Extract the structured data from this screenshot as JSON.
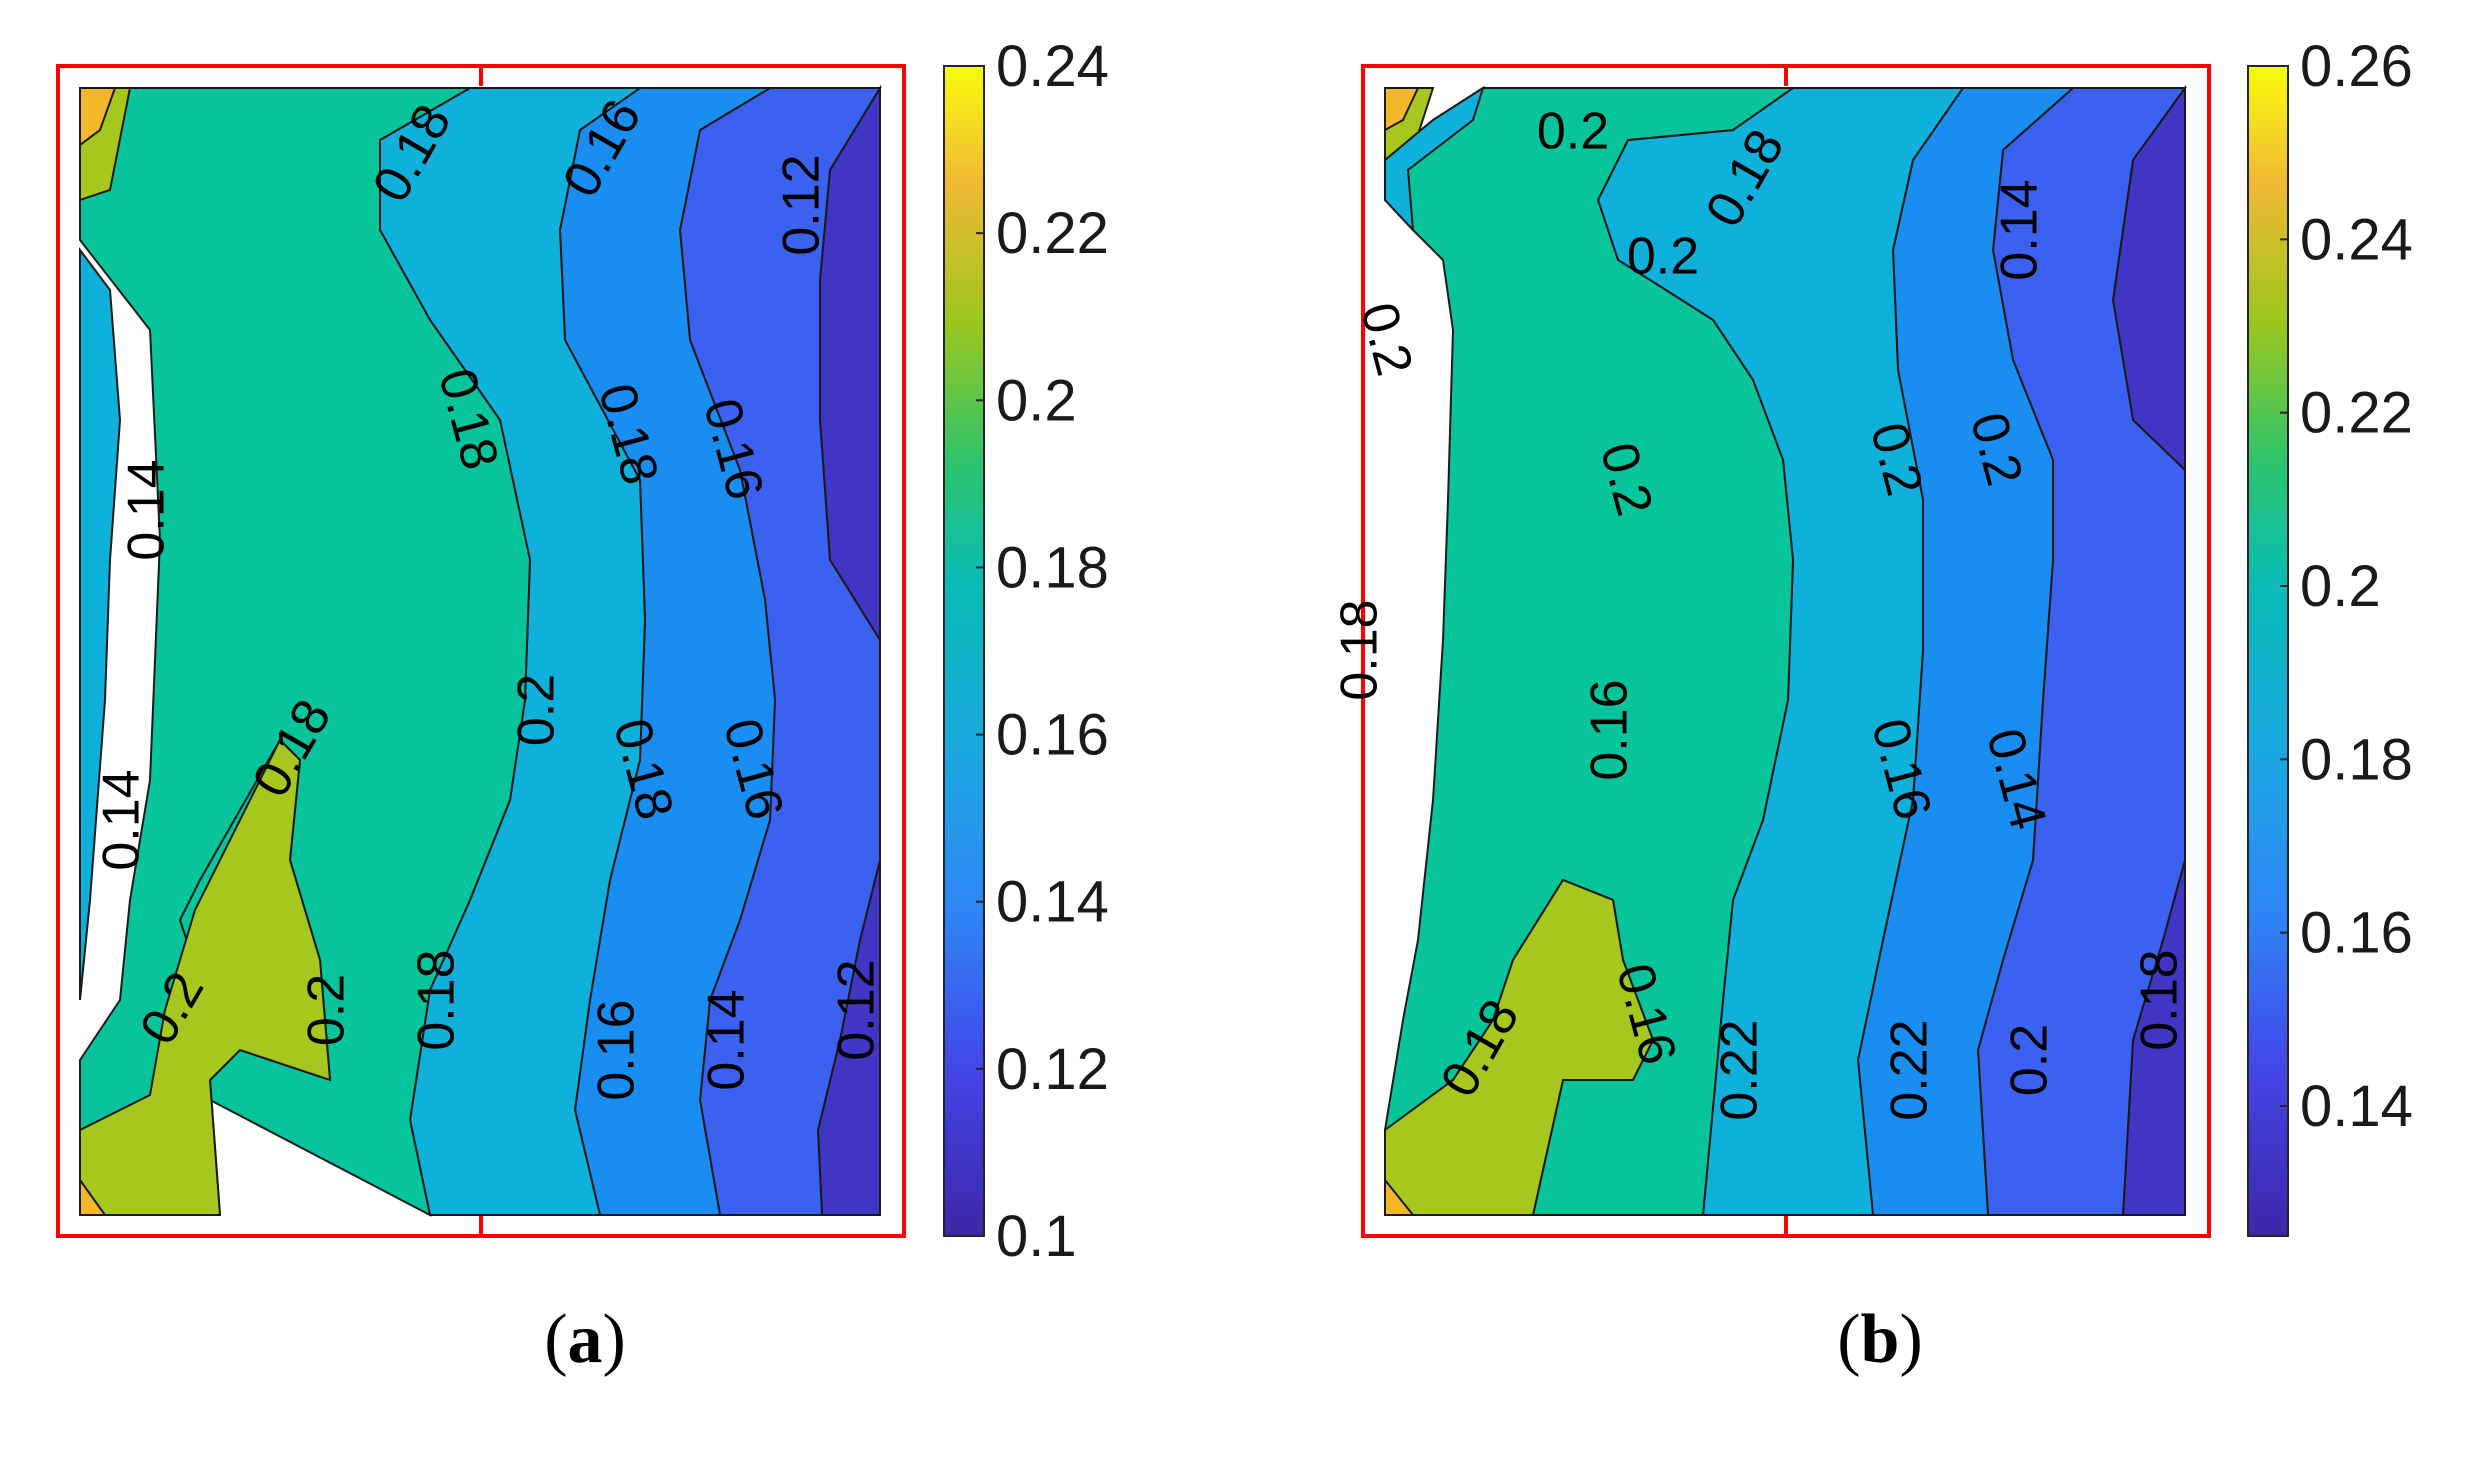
{
  "chart_data": [
    {
      "type": "heatmap",
      "subtype": "filled-contour",
      "panel_label": "a",
      "colormap": "parula",
      "clim": [
        0.1,
        0.24
      ],
      "colorbar_ticks": [
        "0.24",
        "0.22",
        "0.2",
        "0.18",
        "0.16",
        "0.14",
        "0.12",
        "0.1"
      ],
      "contour_labels": [
        "0.18",
        "0.16",
        "0.12",
        "0.18",
        "0.18",
        "0.16",
        "0.14",
        "0.2",
        "0.18",
        "0.16",
        "0.14",
        "0.18",
        "0.2",
        "0.2",
        "0.18",
        "0.16",
        "0.14",
        "0.12"
      ],
      "grid": false,
      "frame_color": "#ff0000"
    },
    {
      "type": "heatmap",
      "subtype": "filled-contour",
      "panel_label": "b",
      "colormap": "parula",
      "clim": [
        0.125,
        0.26
      ],
      "colorbar_ticks": [
        "0.26",
        "0.24",
        "0.22",
        "0.2",
        "0.18",
        "0.16",
        "0.14"
      ],
      "contour_labels": [
        "0.2",
        "0.18",
        "0.2",
        "0.14",
        "0.2",
        "0.2",
        "0.18",
        "0.16",
        "0.2",
        "0.2",
        "0.18",
        "0.16",
        "0.22",
        "0.22",
        "0.2",
        "0.18",
        "0.16",
        "0.14"
      ],
      "grid": false,
      "frame_color": "#ff0000"
    }
  ],
  "captions": [
    {
      "open": "(",
      "letter": "a",
      "close": ")"
    },
    {
      "open": "(",
      "letter": "b",
      "close": ")"
    }
  ]
}
